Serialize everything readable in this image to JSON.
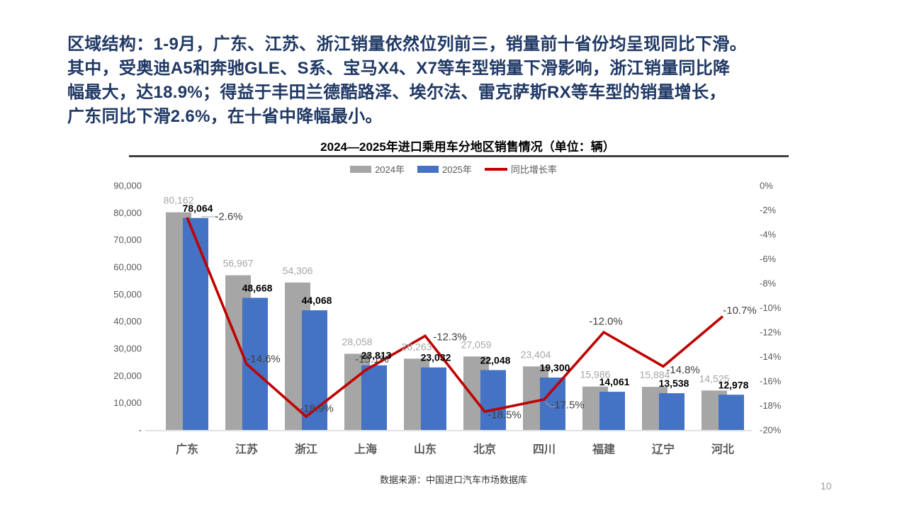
{
  "headline": {
    "lines": [
      "区域结构：1-9月，广东、江苏、浙江销量依然位列前三，销量前十省份均呈现同比下滑。",
      "其中，受奥迪A5和奔驰GLE、S系、宝马X4、X7等车型销量下滑影响，浙江销量同比降",
      "幅最大，达18.9%；得益于丰田兰德酷路泽、埃尔法、雷克萨斯RX等车型的销量增长，",
      "广东同比下滑2.6%，在十省中降幅最小。"
    ],
    "color": "#1F3864"
  },
  "chart": {
    "title": "2024—2025年进口乘用车分地区销售情况（单位：辆）",
    "legend": [
      {
        "label": "2024年",
        "color": "#A6A6A6",
        "type": "swatch"
      },
      {
        "label": "2025年",
        "color": "#4472C4",
        "type": "swatch"
      },
      {
        "label": "同比增长率",
        "color": "#C00000",
        "type": "line"
      }
    ]
  },
  "chart_data": {
    "type": "bar",
    "subtype": "grouped-bars-with-line",
    "title": "2024—2025年进口乘用车分地区销售情况（单位：辆）",
    "categories": [
      "广东",
      "江苏",
      "浙江",
      "上海",
      "山东",
      "北京",
      "四川",
      "福建",
      "辽宁",
      "河北"
    ],
    "series": [
      {
        "name": "2024年",
        "type": "bar",
        "axis": "left",
        "color": "#A6A6A6",
        "values": [
          80162,
          56967,
          54306,
          28058,
          26263,
          27059,
          23404,
          15986,
          15884,
          14525
        ]
      },
      {
        "name": "2025年",
        "type": "bar",
        "axis": "left",
        "color": "#4472C4",
        "values": [
          78064,
          48668,
          44068,
          23813,
          23032,
          22048,
          19300,
          14061,
          13538,
          12978
        ]
      },
      {
        "name": "同比增长率",
        "type": "line",
        "axis": "right",
        "color": "#C00000",
        "values": [
          -2.6,
          -14.6,
          -18.9,
          -15.1,
          -12.3,
          -18.5,
          -17.5,
          -12.0,
          -14.8,
          -10.7
        ]
      }
    ],
    "left_axis": {
      "min": 0,
      "max": 90000,
      "step": 10000,
      "ticks": [
        "90,000",
        "80,000",
        "70,000",
        "60,000",
        "50,000",
        "40,000",
        "30,000",
        "20,000",
        "10,000",
        "-"
      ]
    },
    "right_axis": {
      "min": -20,
      "max": 0,
      "step": -2,
      "ticks": [
        "0%",
        "-2%",
        "-4%",
        "-6%",
        "-8%",
        "-10%",
        "-12%",
        "-14%",
        "-16%",
        "-18%",
        "-20%"
      ]
    },
    "grid": false,
    "legend_position": "top",
    "label_colors": {
      "series2024": "#A6A6A6",
      "series2025": "#000000",
      "rate": "#404040",
      "axis": "#595959",
      "category": "#595959"
    }
  },
  "footer": {
    "source": "数据来源：中国进口汽车市场数据库",
    "page": "10"
  }
}
